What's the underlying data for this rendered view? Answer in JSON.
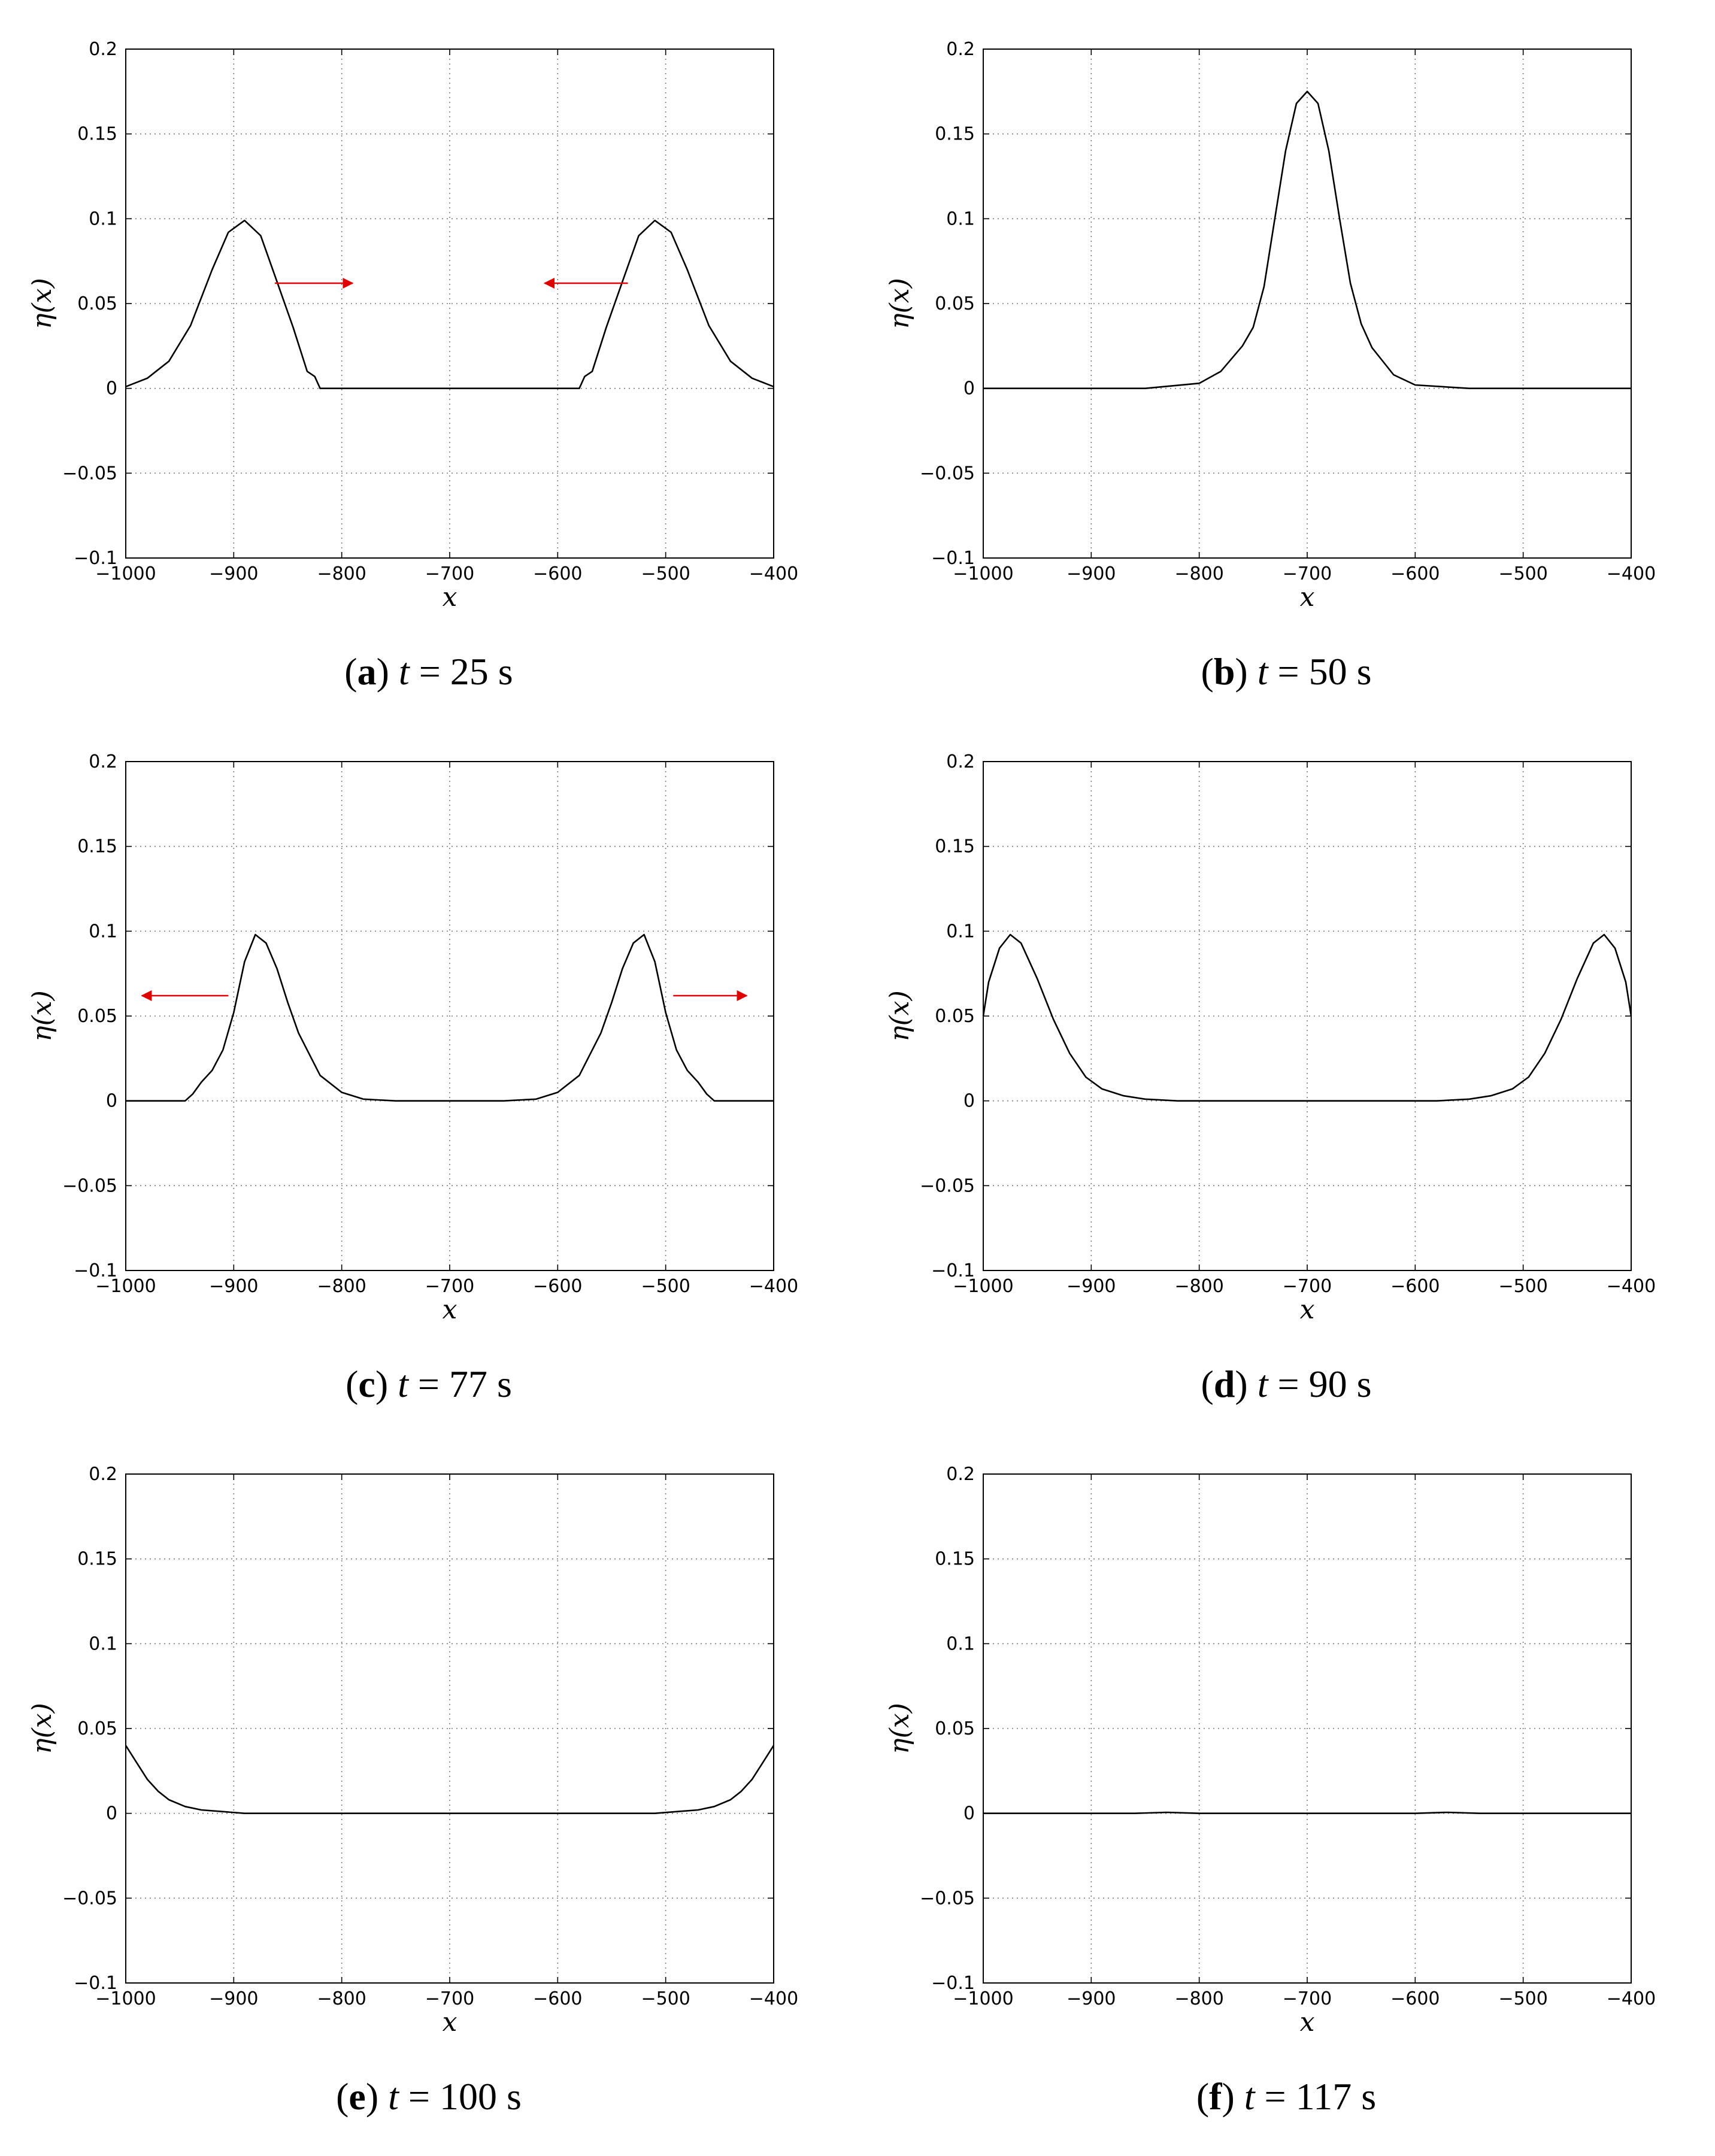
{
  "chart_data": [
    {
      "type": "line",
      "panel_label": "a",
      "caption_var": "t",
      "caption_eq": "=",
      "caption_value": "25 s",
      "xlabel": "x",
      "ylabel": "η(x)",
      "xlim": [
        -1000,
        -400
      ],
      "ylim": [
        -0.1,
        0.2
      ],
      "xticks": [
        -1000,
        -900,
        -800,
        -700,
        -600,
        -500,
        -400
      ],
      "yticks": [
        -0.1,
        -0.05,
        0,
        0.05,
        0.1,
        0.15,
        0.2
      ],
      "grid": true,
      "series": [
        {
          "name": "eta",
          "x": [
            -1000,
            -980,
            -960,
            -940,
            -920,
            -905,
            -890,
            -875,
            -860,
            -845,
            -832,
            -825,
            -820,
            -800,
            -700,
            -600,
            -580,
            -575,
            -568,
            -555,
            -540,
            -525,
            -510,
            -495,
            -480,
            -460,
            -440,
            -420,
            -400
          ],
          "y": [
            0.001,
            0.006,
            0.016,
            0.037,
            0.07,
            0.092,
            0.099,
            0.09,
            0.063,
            0.036,
            0.01,
            0.007,
            0.0,
            0.0,
            0.0,
            0.0,
            0.0,
            0.007,
            0.01,
            0.036,
            0.063,
            0.09,
            0.099,
            0.092,
            0.07,
            0.037,
            0.016,
            0.006,
            0.001
          ]
        }
      ],
      "annotations": [
        {
          "type": "arrow",
          "direction": "right",
          "x_from": -862,
          "x_to": -790,
          "y": 0.062,
          "color": "#e00000"
        },
        {
          "type": "arrow",
          "direction": "left",
          "x_from": -535,
          "x_to": -612,
          "y": 0.062,
          "color": "#e00000"
        }
      ]
    },
    {
      "type": "line",
      "panel_label": "b",
      "caption_var": "t",
      "caption_eq": "=",
      "caption_value": "50 s",
      "xlabel": "x",
      "ylabel": "η(x)",
      "xlim": [
        -1000,
        -400
      ],
      "ylim": [
        -0.1,
        0.2
      ],
      "xticks": [
        -1000,
        -900,
        -800,
        -700,
        -600,
        -500,
        -400
      ],
      "yticks": [
        -0.1,
        -0.05,
        0,
        0.05,
        0.1,
        0.15,
        0.2
      ],
      "grid": true,
      "series": [
        {
          "name": "eta",
          "x": [
            -1000,
            -850,
            -800,
            -780,
            -760,
            -750,
            -740,
            -730,
            -720,
            -710,
            -700,
            -690,
            -680,
            -670,
            -660,
            -650,
            -640,
            -620,
            -600,
            -550,
            -400
          ],
          "y": [
            0.0,
            0.0,
            0.003,
            0.01,
            0.025,
            0.036,
            0.06,
            0.1,
            0.14,
            0.168,
            0.175,
            0.168,
            0.14,
            0.1,
            0.062,
            0.038,
            0.024,
            0.008,
            0.002,
            0.0,
            0.0
          ]
        }
      ],
      "annotations": []
    },
    {
      "type": "line",
      "panel_label": "c",
      "caption_var": "t",
      "caption_eq": "=",
      "caption_value": "77 s",
      "xlabel": "x",
      "ylabel": "η(x)",
      "xlim": [
        -1000,
        -400
      ],
      "ylim": [
        -0.1,
        0.2
      ],
      "xticks": [
        -1000,
        -900,
        -800,
        -700,
        -600,
        -500,
        -400
      ],
      "yticks": [
        -0.1,
        -0.05,
        0,
        0.05,
        0.1,
        0.15,
        0.2
      ],
      "grid": true,
      "series": [
        {
          "name": "eta",
          "x": [
            -1000,
            -945,
            -938,
            -930,
            -920,
            -910,
            -900,
            -890,
            -880,
            -870,
            -860,
            -850,
            -840,
            -820,
            -800,
            -780,
            -750,
            -700,
            -650,
            -620,
            -600,
            -580,
            -560,
            -550,
            -540,
            -530,
            -520,
            -510,
            -500,
            -490,
            -480,
            -470,
            -462,
            -455,
            -400
          ],
          "y": [
            0.0,
            0.0,
            0.004,
            0.011,
            0.018,
            0.03,
            0.052,
            0.082,
            0.098,
            0.093,
            0.078,
            0.058,
            0.04,
            0.015,
            0.005,
            0.001,
            0.0,
            0.0,
            0.0,
            0.001,
            0.005,
            0.015,
            0.04,
            0.058,
            0.078,
            0.093,
            0.098,
            0.082,
            0.052,
            0.03,
            0.018,
            0.011,
            0.004,
            0.0,
            0.0
          ]
        }
      ],
      "annotations": [
        {
          "type": "arrow",
          "direction": "left",
          "x_from": -905,
          "x_to": -985,
          "y": 0.062,
          "color": "#e00000"
        },
        {
          "type": "arrow",
          "direction": "right",
          "x_from": -493,
          "x_to": -425,
          "y": 0.062,
          "color": "#e00000"
        }
      ]
    },
    {
      "type": "line",
      "panel_label": "d",
      "caption_var": "t",
      "caption_eq": "=",
      "caption_value": "90 s",
      "xlabel": "x",
      "ylabel": "η(x)",
      "xlim": [
        -1000,
        -400
      ],
      "ylim": [
        -0.1,
        0.2
      ],
      "xticks": [
        -1000,
        -900,
        -800,
        -700,
        -600,
        -500,
        -400
      ],
      "yticks": [
        -0.1,
        -0.05,
        0,
        0.05,
        0.1,
        0.15,
        0.2
      ],
      "grid": true,
      "series": [
        {
          "name": "eta",
          "x": [
            -1000,
            -995,
            -985,
            -975,
            -965,
            -950,
            -935,
            -920,
            -905,
            -890,
            -870,
            -850,
            -820,
            -700,
            -580,
            -550,
            -530,
            -510,
            -495,
            -480,
            -465,
            -450,
            -435,
            -425,
            -415,
            -405,
            -400
          ],
          "y": [
            0.05,
            0.07,
            0.09,
            0.098,
            0.093,
            0.072,
            0.048,
            0.028,
            0.014,
            0.007,
            0.003,
            0.001,
            0.0,
            0.0,
            0.0,
            0.001,
            0.003,
            0.007,
            0.014,
            0.028,
            0.048,
            0.072,
            0.093,
            0.098,
            0.09,
            0.07,
            0.05
          ]
        }
      ],
      "annotations": []
    },
    {
      "type": "line",
      "panel_label": "e",
      "caption_var": "t",
      "caption_eq": "=",
      "caption_value": "100 s",
      "xlabel": "x",
      "ylabel": "η(x)",
      "xlim": [
        -1000,
        -400
      ],
      "ylim": [
        -0.1,
        0.2
      ],
      "xticks": [
        -1000,
        -900,
        -800,
        -700,
        -600,
        -500,
        -400
      ],
      "yticks": [
        -0.1,
        -0.05,
        0,
        0.05,
        0.1,
        0.15,
        0.2
      ],
      "grid": true,
      "series": [
        {
          "name": "eta",
          "x": [
            -1000,
            -990,
            -980,
            -970,
            -960,
            -945,
            -930,
            -910,
            -890,
            -850,
            -700,
            -550,
            -510,
            -490,
            -470,
            -455,
            -440,
            -430,
            -420,
            -410,
            -400
          ],
          "y": [
            0.04,
            0.03,
            0.02,
            0.013,
            0.008,
            0.004,
            0.002,
            0.001,
            0.0,
            0.0,
            0.0,
            0.0,
            0.0,
            0.001,
            0.002,
            0.004,
            0.008,
            0.013,
            0.02,
            0.03,
            0.04
          ]
        }
      ],
      "annotations": []
    },
    {
      "type": "line",
      "panel_label": "f",
      "caption_var": "t",
      "caption_eq": "=",
      "caption_value": "117 s",
      "xlabel": "x",
      "ylabel": "η(x)",
      "xlim": [
        -1000,
        -400
      ],
      "ylim": [
        -0.1,
        0.2
      ],
      "xticks": [
        -1000,
        -900,
        -800,
        -700,
        -600,
        -500,
        -400
      ],
      "yticks": [
        -0.1,
        -0.05,
        0,
        0.05,
        0.1,
        0.15,
        0.2
      ],
      "grid": true,
      "series": [
        {
          "name": "eta",
          "x": [
            -1000,
            -860,
            -830,
            -800,
            -700,
            -600,
            -570,
            -540,
            -400
          ],
          "y": [
            0.0,
            0.0,
            0.0006,
            0.0,
            0.0,
            0.0,
            0.0006,
            0.0,
            0.0
          ]
        }
      ],
      "annotations": []
    }
  ]
}
